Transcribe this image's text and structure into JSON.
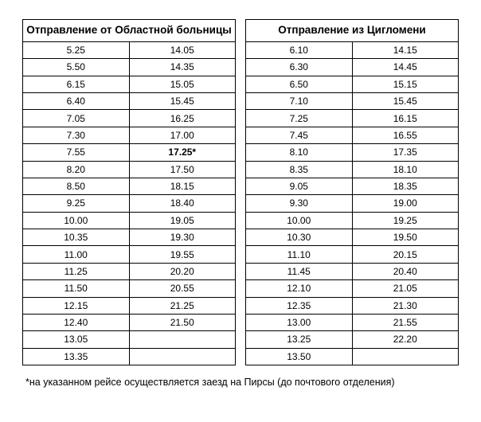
{
  "left_table": {
    "header": "Отправление от Областной больницы",
    "columns": 2,
    "col_widths": [
      0.5,
      0.5
    ],
    "border_color": "#000000",
    "header_fontsize": 13.5,
    "cell_fontsize": 12,
    "rows": [
      [
        "5.25",
        "14.05"
      ],
      [
        "5.50",
        "14.35"
      ],
      [
        "6.15",
        "15.05"
      ],
      [
        "6.40",
        "15.45"
      ],
      [
        "7.05",
        "16.25"
      ],
      [
        "7.30",
        "17.00"
      ],
      [
        "7.55",
        {
          "text": "17.25*",
          "bold": true
        }
      ],
      [
        "8.20",
        "17.50"
      ],
      [
        "8.50",
        "18.15"
      ],
      [
        "9.25",
        "18.40"
      ],
      [
        "10.00",
        "19.05"
      ],
      [
        "10.35",
        "19.30"
      ],
      [
        "11.00",
        "19.55"
      ],
      [
        "11.25",
        "20.20"
      ],
      [
        "11.50",
        "20.55"
      ],
      [
        "12.15",
        "21.25"
      ],
      [
        "12.40",
        "21.50"
      ],
      [
        "13.05",
        ""
      ],
      [
        "13.35",
        ""
      ]
    ]
  },
  "right_table": {
    "header": "Отправление из Цигломени",
    "columns": 2,
    "col_widths": [
      0.5,
      0.5
    ],
    "border_color": "#000000",
    "header_fontsize": 13.5,
    "cell_fontsize": 12,
    "rows": [
      [
        "6.10",
        "14.15"
      ],
      [
        "6.30",
        "14.45"
      ],
      [
        "6.50",
        "15.15"
      ],
      [
        "7.10",
        "15.45"
      ],
      [
        "7.25",
        "16.15"
      ],
      [
        "7.45",
        "16.55"
      ],
      [
        "8.10",
        "17.35"
      ],
      [
        "8.35",
        "18.10"
      ],
      [
        "9.05",
        "18.35"
      ],
      [
        "9.30",
        "19.00"
      ],
      [
        "10.00",
        "19.25"
      ],
      [
        "10.30",
        "19.50"
      ],
      [
        "11.10",
        "20.15"
      ],
      [
        "11.45",
        "20.40"
      ],
      [
        "12.10",
        "21.05"
      ],
      [
        "12.35",
        "21.30"
      ],
      [
        "13.00",
        "21.55"
      ],
      [
        "13.25",
        "22.20"
      ],
      [
        "13.50",
        ""
      ]
    ]
  },
  "footnote": "*на указанном рейсе осуществляется заезд на Пирсы (до почтового отделения)",
  "background_color": "#ffffff",
  "text_color": "#000000"
}
